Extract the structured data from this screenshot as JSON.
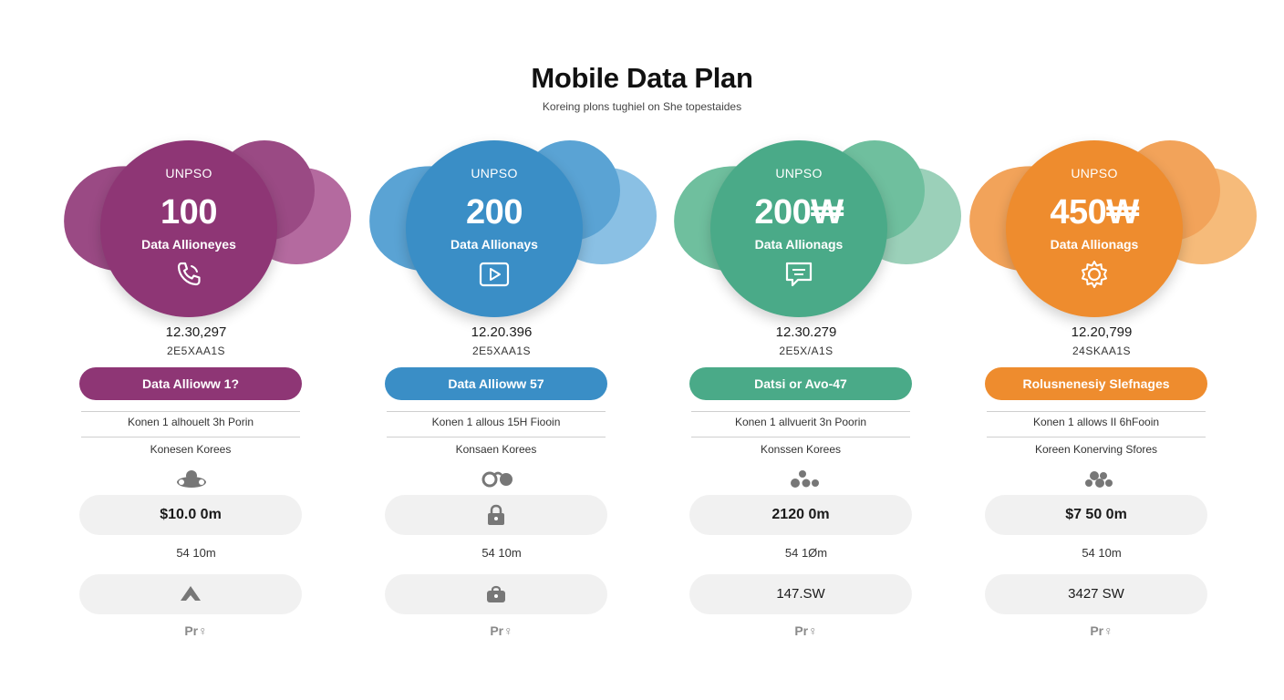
{
  "header": {
    "title": "Mobile Data Plan",
    "subtitle": "Koreing plons tughiel on She topestaides"
  },
  "plans": [
    {
      "color": "#8e3675",
      "blob_light": "#b46a9f",
      "blob_mid": "#9a4a84",
      "circle_label": "UNPSO",
      "amount": "100",
      "allowance": "Data Allioneyes",
      "icon": "phone-icon",
      "stat_main": "12.30,297",
      "stat_sub": "2E5XAA1S",
      "pill": "Data Allioww 1?",
      "feature_1": "Konen 1 alhouelt 3h Porin",
      "feature_2": "Konesen Korees",
      "glyph": "cloud-glyph-icon",
      "price": "$10.0 0m",
      "speed": "54 10m",
      "second": "",
      "second_icon": "triangle-icon",
      "footer": "Pr♀"
    },
    {
      "color": "#3a8ec6",
      "blob_light": "#8ac0e4",
      "blob_mid": "#5aa3d4",
      "circle_label": "UNPSO",
      "amount": "200",
      "allowance": "Data Allionays",
      "icon": "play-icon",
      "stat_main": "12.20.396",
      "stat_sub": "2E5XAA1S",
      "pill": "Data Allioww 57",
      "feature_1": "Konen 1 allous 15H Fiooin",
      "feature_2": "Konsaen Korees",
      "glyph": "dots-glyph-icon",
      "price": "",
      "price_icon": "lock-icon",
      "speed": "54 10m",
      "second": "",
      "second_icon": "bag-icon",
      "footer": "Pr♀"
    },
    {
      "color": "#4aaa88",
      "blob_light": "#9bd0b9",
      "blob_mid": "#6fbf9e",
      "circle_label": "UNPSO",
      "amount": "200₩",
      "allowance": "Data Allionags",
      "icon": "chat-icon",
      "stat_main": "12.30.279",
      "stat_sub": "2E5X/A1S",
      "pill": "Datsi or Avo-47",
      "feature_1": "Konen 1 allvuerit 3n Poorin",
      "feature_2": "Konssen Korees",
      "glyph": "cluster-glyph-icon",
      "price": "2120 0m",
      "speed": "54 1Øm",
      "second": "147.SW",
      "footer": "Pr♀"
    },
    {
      "color": "#ee8c2e",
      "blob_light": "#f6bb7a",
      "blob_mid": "#f2a35a",
      "circle_label": "UNPSO",
      "amount": "450₩",
      "allowance": "Data Allionags",
      "icon": "gear-icon",
      "stat_main": "12.20,799",
      "stat_sub": "24SKAA1S",
      "pill": "Rolusnenesiy Slefnages",
      "feature_1": "Konen 1 allows II 6hFooin",
      "feature_2": "Koreen Konerving Sfores",
      "glyph": "cluster-glyph-icon",
      "price": "$7 50 0m",
      "speed": "54 10m",
      "second": "3427 SW",
      "footer": "Pr♀"
    }
  ]
}
